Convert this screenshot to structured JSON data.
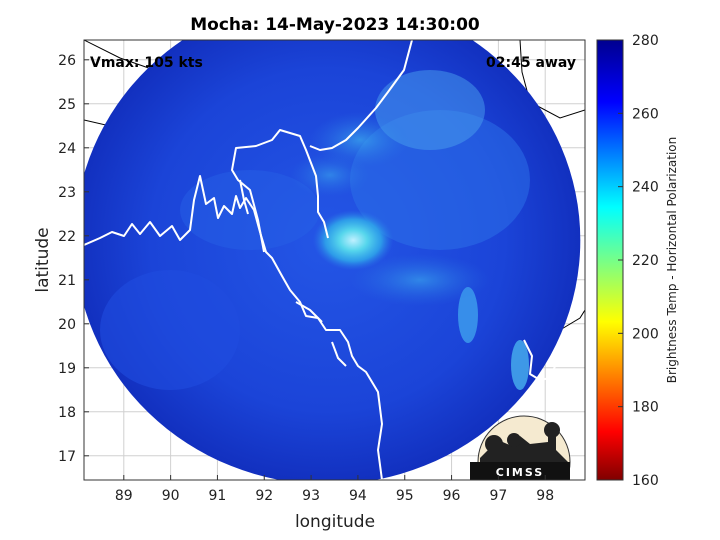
{
  "chart_data": {
    "type": "heatmap",
    "title": "Mocha: 14-May-2023 14:30:00",
    "xlabel": "longitude",
    "ylabel": "latitude",
    "xlim": [
      88.15,
      98.85
    ],
    "ylim": [
      16.45,
      26.45
    ],
    "x_ticks": [
      89,
      90,
      91,
      92,
      93,
      94,
      95,
      96,
      97,
      98
    ],
    "y_ticks": [
      17,
      18,
      19,
      20,
      21,
      22,
      23,
      24,
      25,
      26
    ],
    "grid": true,
    "annotations": {
      "vmax": "Vmax: 105 kts",
      "time_away": "02:45 away"
    },
    "colorbar": {
      "label": "Brightness Temp - Horizontal Polarization",
      "range": [
        160,
        280
      ],
      "ticks": [
        160,
        180,
        200,
        220,
        240,
        260,
        280
      ],
      "colormap": "jet"
    },
    "swath": {
      "center_lon": 93.35,
      "center_lat": 21.9,
      "radius_lon": 5.4,
      "radius_lat": 5.55
    },
    "storm_center": {
      "lon": 93.9,
      "lat": 21.9,
      "min_brightness_temp": 236
    },
    "logo_text": "CIMSS",
    "colors": {
      "background_field": "#1f3fd6",
      "coastline": "#ffffff",
      "land_outline": "#000000"
    }
  }
}
